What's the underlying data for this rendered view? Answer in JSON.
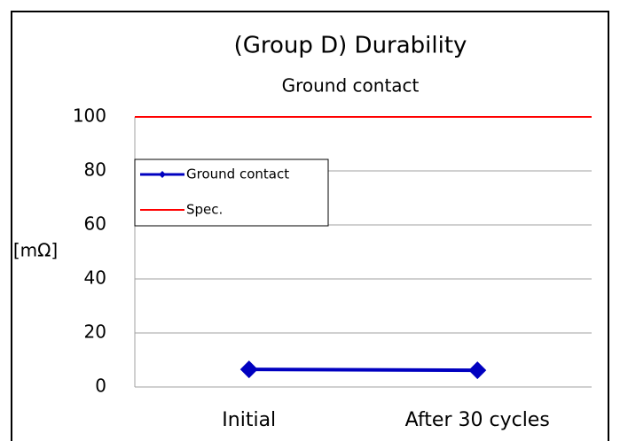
{
  "chart_data": {
    "type": "line",
    "title": "(Group D) Durability",
    "subtitle": "Ground contact",
    "y_label": "[mΩ]",
    "categories": [
      "Initial",
      "After 30 cycles"
    ],
    "series": [
      {
        "name": "Ground contact",
        "color": "#0000c0",
        "marker": "diamond",
        "values": [
          6.5,
          6.2
        ]
      },
      {
        "name": "Spec.",
        "color": "#ff0000",
        "marker": "none",
        "values": [
          100,
          100
        ]
      }
    ],
    "ylim": [
      0,
      100
    ],
    "yticks": [
      0,
      20,
      40,
      60,
      80,
      100
    ],
    "grid": true,
    "legend": "upper left"
  }
}
